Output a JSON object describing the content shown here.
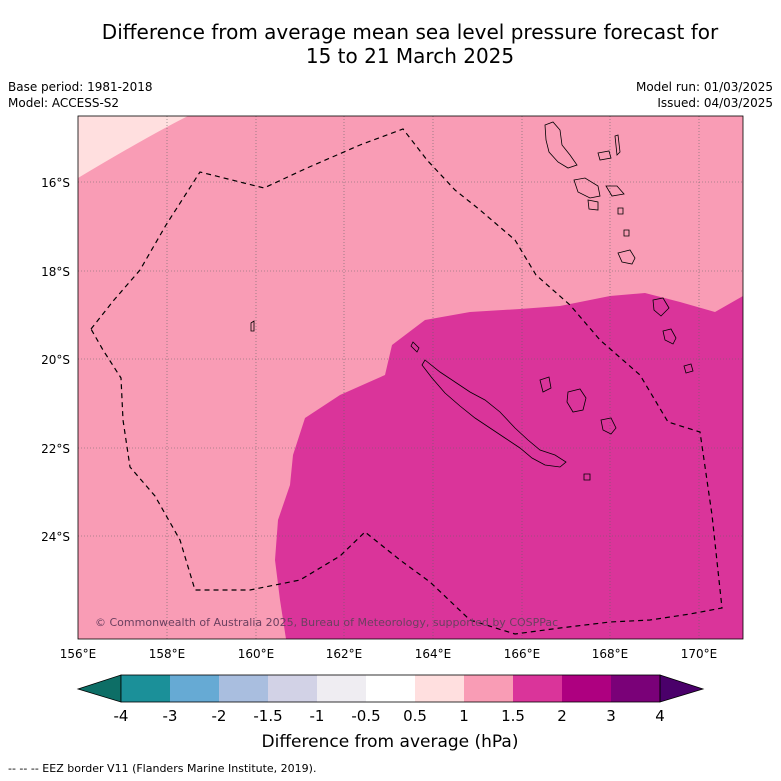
{
  "title_line1": "Difference from average mean sea level pressure forecast for",
  "title_line2": "15 to 21 March 2025",
  "base_period": "Base period: 1981-2018",
  "model": "Model: ACCESS-S2",
  "model_run": "Model run: 01/03/2025",
  "issued": "Issued: 04/03/2025",
  "copyright": "© Commonwealth of Australia 2025, Bureau of Meteorology, supported by COSPPac",
  "lat_labels": [
    "16°S",
    "18°S",
    "20°S",
    "22°S",
    "24°S"
  ],
  "lon_labels": [
    "156°E",
    "158°E",
    "160°E",
    "162°E",
    "164°E",
    "166°E",
    "168°E",
    "170°E"
  ],
  "colorbar": {
    "ticks": [
      "-4",
      "-3",
      "-2",
      "-1.5",
      "-1",
      "-0.5",
      "0.5",
      "1",
      "1.5",
      "2",
      "3",
      "4"
    ],
    "colors": [
      "#0d6e66",
      "#1b9099",
      "#66aad4",
      "#a9bedf",
      "#d2d2e6",
      "#efedf2",
      "#ffffff",
      "#ffdfdf",
      "#f99cb5",
      "#da349a",
      "#ae0080",
      "#7a0178",
      "#4a006a"
    ],
    "label": "Difference from average (hPa)"
  },
  "legend_line": "--  --  -- EEZ border V11 (Flanders Marine Institute, 2019).",
  "colors": {
    "light_pink": "#ffdfdf",
    "pink": "#f99cb5",
    "magenta": "#da349a"
  }
}
